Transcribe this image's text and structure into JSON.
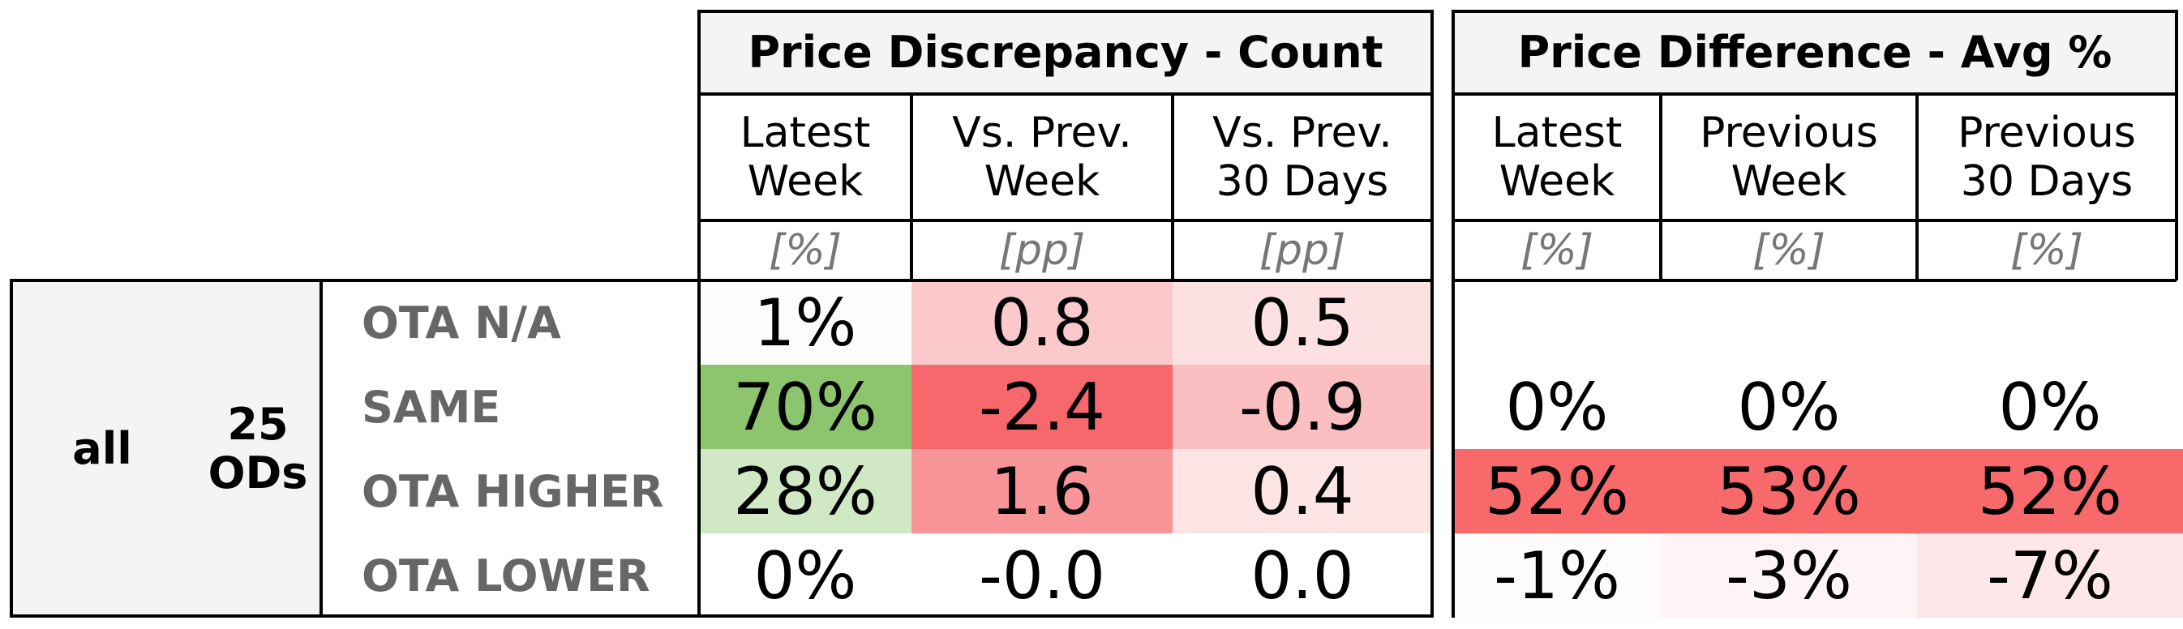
{
  "chart_data": {
    "type": "table",
    "left_group": {
      "label": "all"
    },
    "sub_group": {
      "label": "25\nODs"
    },
    "row_labels": [
      "OTA N/A",
      "SAME",
      "OTA HIGHER",
      "OTA LOWER"
    ],
    "sections": [
      {
        "title": "Price Discrepancy - Count",
        "columns": [
          {
            "header": "Latest\nWeek",
            "unit": "[%]",
            "cells": [
              {
                "display": "1%",
                "value": 1,
                "color": "#fcfdfb"
              },
              {
                "display": "70%",
                "value": 70,
                "color": "#8cc56e"
              },
              {
                "display": "28%",
                "value": 28,
                "color": "#d0e8c4"
              },
              {
                "display": "0%",
                "value": 0,
                "color": "#ffffff"
              }
            ]
          },
          {
            "header": "Vs. Prev.\nWeek",
            "unit": "[pp]",
            "cells": [
              {
                "display": "0.8",
                "value": 0.8,
                "color": "#fbc9cc"
              },
              {
                "display": "-2.4",
                "value": -2.4,
                "color": "#f7686c"
              },
              {
                "display": "1.6",
                "value": 1.6,
                "color": "#f99598"
              },
              {
                "display": "-0.0",
                "value": -0.0,
                "color": "#ffffff"
              }
            ]
          },
          {
            "header": "Vs. Prev.\n30 Days",
            "unit": "[pp]",
            "cells": [
              {
                "display": "0.5",
                "value": 0.5,
                "color": "#fde0e1"
              },
              {
                "display": "-0.9",
                "value": -0.9,
                "color": "#fbbfc1"
              },
              {
                "display": "0.4",
                "value": 0.4,
                "color": "#fde4e5"
              },
              {
                "display": "0.0",
                "value": 0.0,
                "color": "#ffffff"
              }
            ]
          }
        ]
      },
      {
        "title": "Price Difference - Avg %",
        "columns": [
          {
            "header": "Latest\nWeek",
            "unit": "[%]",
            "cells": [
              {
                "display": "",
                "value": null,
                "color": "#ffffff"
              },
              {
                "display": "0%",
                "value": 0,
                "color": "#ffffff"
              },
              {
                "display": "52%",
                "value": 52,
                "color": "#f8696b"
              },
              {
                "display": "-1%",
                "value": -1,
                "color": "#fefbfb"
              }
            ]
          },
          {
            "header": "Previous\nWeek",
            "unit": "[%]",
            "cells": [
              {
                "display": "",
                "value": null,
                "color": "#ffffff"
              },
              {
                "display": "0%",
                "value": 0,
                "color": "#ffffff"
              },
              {
                "display": "53%",
                "value": 53,
                "color": "#f8696b"
              },
              {
                "display": "-3%",
                "value": -3,
                "color": "#fef4f5"
              }
            ]
          },
          {
            "header": "Previous\n30 Days",
            "unit": "[%]",
            "cells": [
              {
                "display": "",
                "value": null,
                "color": "#ffffff"
              },
              {
                "display": "0%",
                "value": 0,
                "color": "#ffffff"
              },
              {
                "display": "52%",
                "value": 52,
                "color": "#f8696b"
              },
              {
                "display": "-7%",
                "value": -7,
                "color": "#fde7e8"
              }
            ]
          }
        ]
      }
    ]
  }
}
